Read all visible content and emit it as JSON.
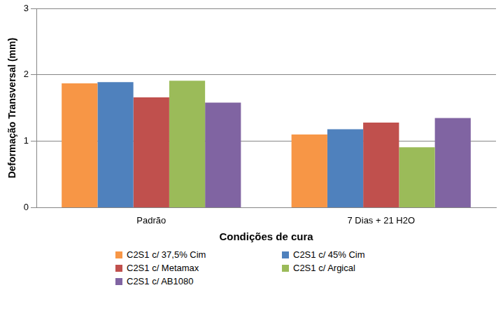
{
  "chart_data": {
    "type": "bar",
    "x_label": "Condições de cura",
    "y_label": "Deformação Transversal (mm)",
    "categories": [
      "Padrão",
      "7 Dias + 21 H2O"
    ],
    "series": [
      {
        "name": "C2S1 c/ 37,5% Cim",
        "color": "#f79646",
        "values": [
          1.87,
          1.1
        ]
      },
      {
        "name": "C2S1 c/ 45% Cim",
        "color": "#4f81bd",
        "values": [
          1.89,
          1.18
        ]
      },
      {
        "name": "C2S1 c/ Metamax",
        "color": "#c0504d",
        "values": [
          1.66,
          1.28
        ]
      },
      {
        "name": "C2S1 c/ Argical",
        "color": "#9bbb59",
        "values": [
          1.91,
          0.91
        ]
      },
      {
        "name": "C2S1 c/ AB1080",
        "color": "#8064a2",
        "values": [
          1.58,
          1.35
        ]
      }
    ],
    "ylim": [
      0,
      3
    ],
    "yticks": [
      0,
      1,
      2,
      3
    ],
    "grid": true,
    "legend": "bottom"
  }
}
